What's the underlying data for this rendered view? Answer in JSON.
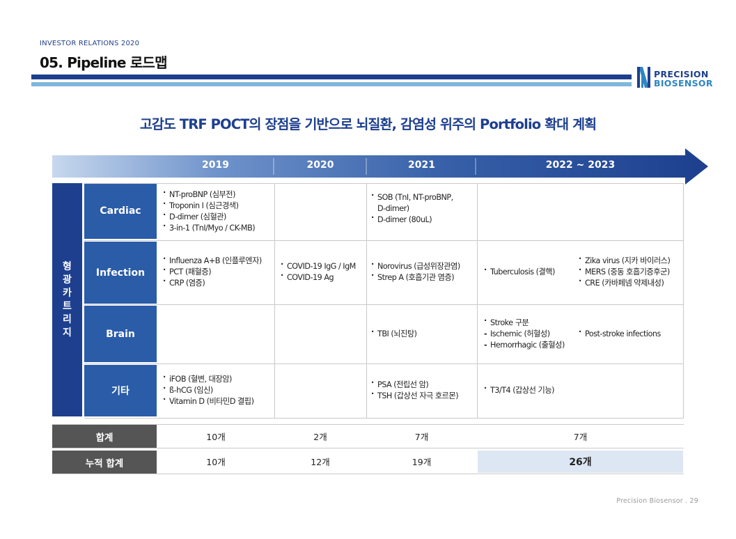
{
  "header": {
    "kicker": "INVESTOR RELATIONS 2020",
    "title": "05. Pipeline 로드맵"
  },
  "logo": {
    "line1": "PRECISION",
    "line2": "BIOSENSOR",
    "icon": "precision-biosensor-logo-mark"
  },
  "headline": "고감도 TRF POCT의 장점을 기반으로 뇌질환, 감염성 위주의 Portfolio 확대 계획",
  "years": [
    "2019",
    "2020",
    "2021",
    "2022 ~ 2023"
  ],
  "side_label": [
    "형",
    "광",
    "카",
    "트",
    "리",
    "지"
  ],
  "rows": [
    {
      "category": "Cardiac",
      "c2019": [
        "NT-proBNP (심부전)",
        "Troponin I (심근경색)",
        "D-dimer (심혈관)",
        "3-in-1 (TnI/Myo / CK-MB)"
      ],
      "c2020": [],
      "c2021": [
        "SOB (TnI, NT-proBNP,",
        "D-dimer)",
        "D-dimer (80uL)"
      ],
      "c2022a": [],
      "c2022b": []
    },
    {
      "category": "Infection",
      "c2019": [
        "Influenza A+B (인플루엔자)",
        "PCT (패혈증)",
        "CRP (염증)"
      ],
      "c2020": [
        "COVID-19 IgG / IgM",
        "COVID-19 Ag"
      ],
      "c2021": [
        "Norovirus (급성위장관염)",
        "Strep A (호흡기관 염증)"
      ],
      "c2022a": [
        "Tuberculosis (결핵)"
      ],
      "c2022b": [
        "Zika virus (지카 바이러스)",
        "MERS (중동 호흡기증후군)",
        "CRE (카바페넴 약제내성)"
      ]
    },
    {
      "category": "Brain",
      "c2019": [],
      "c2020": [],
      "c2021": [
        "TBI (뇌진탕)"
      ],
      "c2022a": [
        "Stroke 구분",
        "Ischemic (허혈성)",
        "Hemorrhagic (출혈성)"
      ],
      "c2022b": [
        "Post-stroke infections"
      ]
    },
    {
      "category": "기타",
      "c2019": [
        "iFOB (혈변, 대장암)",
        "ß-hCG (임신)",
        "Vitamin D (비타민D 결핍)"
      ],
      "c2020": [],
      "c2021": [
        "PSA (전립선 암)",
        "TSH (갑상선 자극 호르몬)"
      ],
      "c2022a": [
        "T3/T4 (갑상선 기능)"
      ],
      "c2022b": []
    }
  ],
  "totals": {
    "label": "합계",
    "values": [
      "10개",
      "2개",
      "7개",
      "7개"
    ]
  },
  "cumulative": {
    "label": "누적 합계",
    "values": [
      "10개",
      "12개",
      "19개",
      "26개"
    ]
  },
  "footer": "Precision Biosensor .  29",
  "colors": {
    "navy": "#1d3f8e",
    "category_blue": "#2a5ca8",
    "sky": "#7fb6dc",
    "summary_gray": "#555555",
    "highlight": "#dde6f3"
  }
}
